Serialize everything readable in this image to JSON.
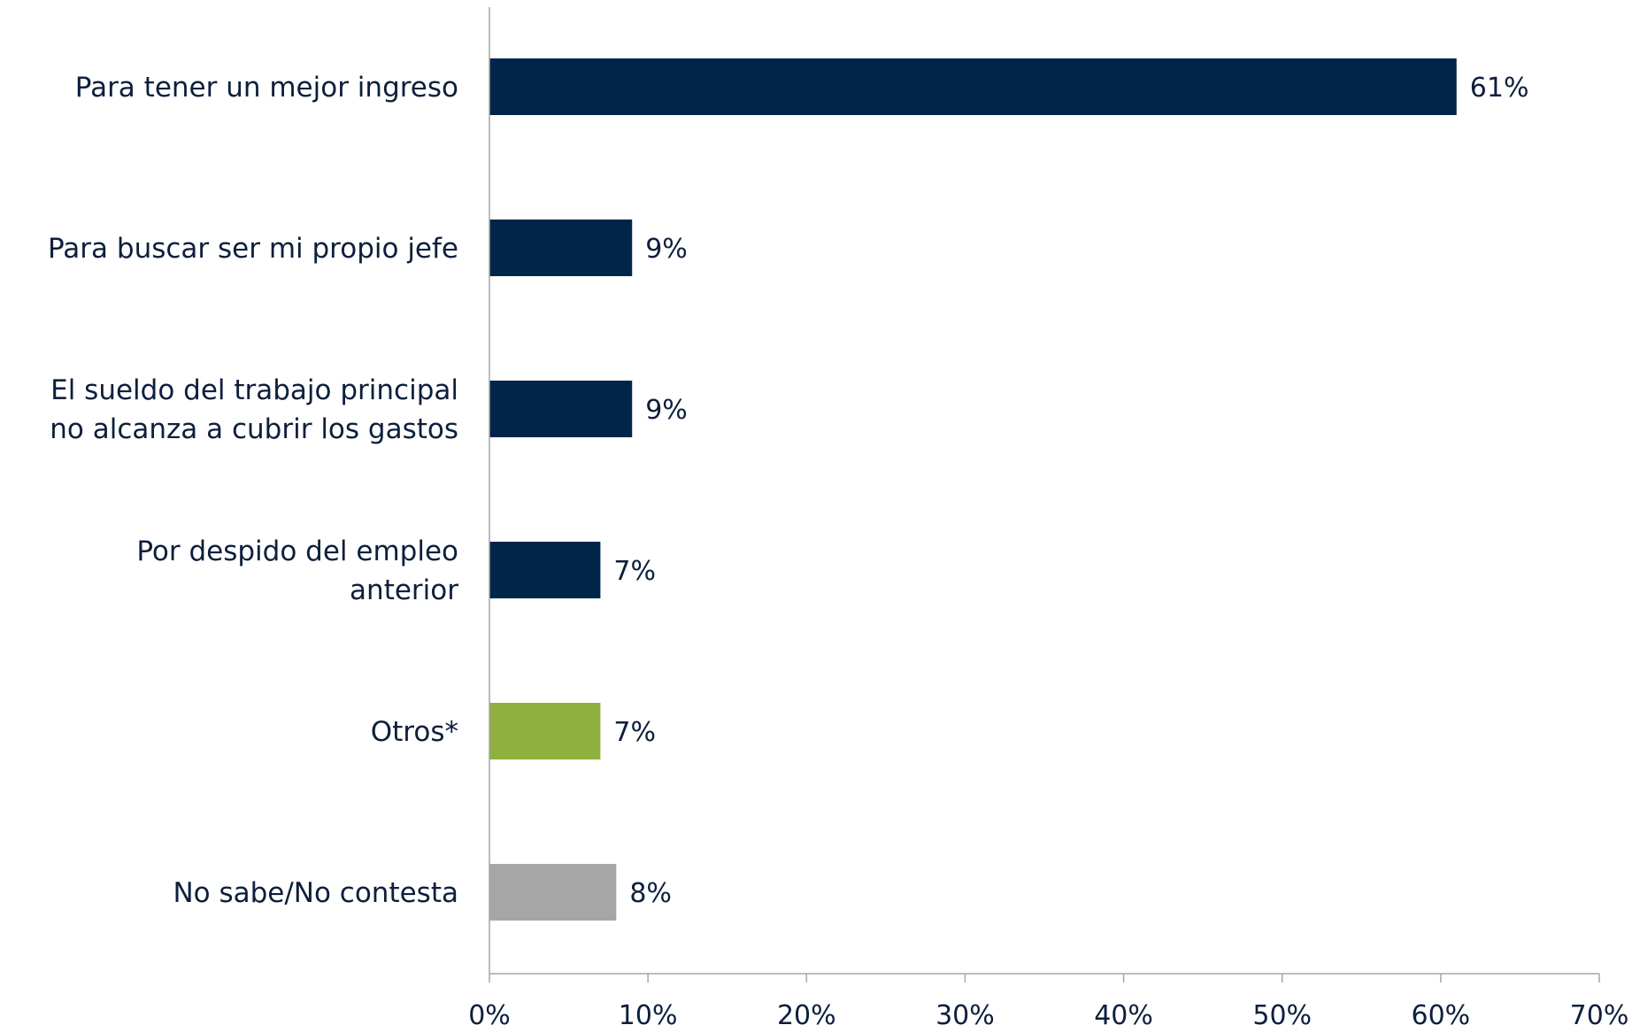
{
  "chart_data": {
    "type": "bar",
    "orientation": "horizontal",
    "categories": [
      [
        "Para tener un mejor ingreso"
      ],
      [
        "Para buscar ser mi propio jefe"
      ],
      [
        "El sueldo del trabajo principal",
        "no alcanza a cubrir los gastos"
      ],
      [
        "Por despido del empleo",
        "anterior"
      ],
      [
        "Otros*"
      ],
      [
        "No sabe/No contesta"
      ]
    ],
    "values": [
      61,
      9,
      9,
      7,
      7,
      8
    ],
    "data_labels": [
      "61%",
      "9%",
      "9%",
      "7%",
      "7%",
      "8%"
    ],
    "colors": [
      "#002548",
      "#002548",
      "#002548",
      "#002548",
      "#8faf3f",
      "#a6a6a6"
    ],
    "xlim": [
      0,
      70
    ],
    "xticks": [
      0,
      10,
      20,
      30,
      40,
      50,
      60,
      70
    ],
    "xtick_labels": [
      "0%",
      "10%",
      "20%",
      "30%",
      "40%",
      "50%",
      "60%",
      "70%"
    ],
    "grid": false,
    "legend": "none"
  }
}
